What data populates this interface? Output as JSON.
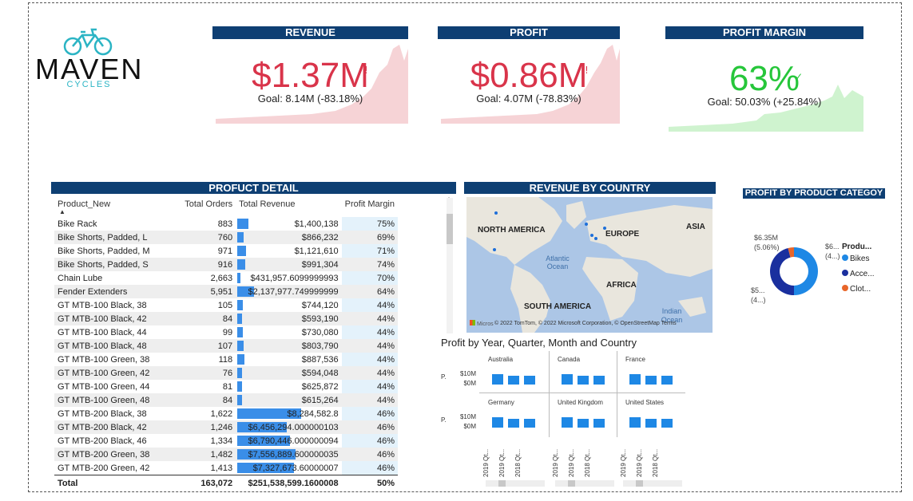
{
  "logo": {
    "brand": "MAVEN",
    "sub": "CYCLES"
  },
  "kpis": [
    {
      "title": "REVENUE",
      "value": "$1.37M",
      "goal": "Goal: 8.14M (-83.18%)",
      "status_icon": "!"
    },
    {
      "title": "PROFIT",
      "value": "$0.86M",
      "goal": "Goal: 4.07M (-78.83%)",
      "status_icon": "!"
    },
    {
      "title": "PROFIT MARGIN",
      "value": "63%",
      "goal": "Goal: 50.03% (+25.84%)",
      "status_icon": "✓"
    }
  ],
  "colors": {
    "header": "#0e3f73",
    "bad": "#d9344a",
    "good": "#26c63a",
    "bar": "#1e88e5"
  },
  "product_detail": {
    "title": "PROFUCT DETAIL",
    "columns": [
      "Product_New",
      "Total Orders",
      "Total Revenue",
      "Profit Margin"
    ],
    "rows": [
      {
        "name": "Bike Rack",
        "orders": "883",
        "revenue": "$1,400,138",
        "margin": "75%",
        "rev_num": 1400138
      },
      {
        "name": "Bike Shorts, Padded, L",
        "orders": "760",
        "revenue": "$866,232",
        "margin": "69%",
        "rev_num": 866232
      },
      {
        "name": "Bike Shorts, Padded, M",
        "orders": "971",
        "revenue": "$1,121,610",
        "margin": "71%",
        "rev_num": 1121610
      },
      {
        "name": "Bike Shorts, Padded, S",
        "orders": "916",
        "revenue": "$991,304",
        "margin": "74%",
        "rev_num": 991304
      },
      {
        "name": "Chain Lube",
        "orders": "2,663",
        "revenue": "$431,957.6099999993",
        "margin": "70%",
        "rev_num": 431957
      },
      {
        "name": "Fender Extenders",
        "orders": "5,951",
        "revenue": "$2,137,977.749999999",
        "margin": "64%",
        "rev_num": 2137977
      },
      {
        "name": "GT MTB-100 Black, 38",
        "orders": "105",
        "revenue": "$744,120",
        "margin": "44%",
        "rev_num": 744120
      },
      {
        "name": "GT MTB-100 Black, 42",
        "orders": "84",
        "revenue": "$593,190",
        "margin": "44%",
        "rev_num": 593190
      },
      {
        "name": "GT MTB-100 Black, 44",
        "orders": "99",
        "revenue": "$730,080",
        "margin": "44%",
        "rev_num": 730080
      },
      {
        "name": "GT MTB-100 Black, 48",
        "orders": "107",
        "revenue": "$803,790",
        "margin": "44%",
        "rev_num": 803790
      },
      {
        "name": "GT MTB-100 Green, 38",
        "orders": "118",
        "revenue": "$887,536",
        "margin": "44%",
        "rev_num": 887536
      },
      {
        "name": "GT MTB-100 Green, 42",
        "orders": "76",
        "revenue": "$594,048",
        "margin": "44%",
        "rev_num": 594048
      },
      {
        "name": "GT MTB-100 Green, 44",
        "orders": "81",
        "revenue": "$625,872",
        "margin": "44%",
        "rev_num": 625872
      },
      {
        "name": "GT MTB-100 Green, 48",
        "orders": "84",
        "revenue": "$615,264",
        "margin": "44%",
        "rev_num": 615264
      },
      {
        "name": "GT MTB-200 Black, 38",
        "orders": "1,622",
        "revenue": "$8,284,582.8",
        "margin": "46%",
        "rev_num": 8284582
      },
      {
        "name": "GT MTB-200 Black, 42",
        "orders": "1,246",
        "revenue": "$6,456,294.000000103",
        "margin": "46%",
        "rev_num": 6456294
      },
      {
        "name": "GT MTB-200 Black, 46",
        "orders": "1,334",
        "revenue": "$6,790,446.000000094",
        "margin": "46%",
        "rev_num": 6790446
      },
      {
        "name": "GT MTB-200 Green, 38",
        "orders": "1,482",
        "revenue": "$7,556,889.600000035",
        "margin": "46%",
        "rev_num": 7556889
      },
      {
        "name": "GT MTB-200 Green, 42",
        "orders": "1,413",
        "revenue": "$7,327,673.60000007",
        "margin": "46%",
        "rev_num": 7327673
      }
    ],
    "total": {
      "label": "Total",
      "orders": "163,072",
      "revenue": "$251,538,599.1600008",
      "margin": "50%"
    }
  },
  "map": {
    "title": "REVENUE BY COUNTRY",
    "labels": [
      "NORTH AMERICA",
      "EUROPE",
      "ASIA",
      "AFRICA",
      "SOUTH AMERICA"
    ],
    "oceans": [
      "Atlantic\nOcean",
      "Indian\nOcean"
    ],
    "attribution": "© 2022 TomTom, © 2022 Microsoft Corporation, © OpenStreetMap Terms",
    "ms_logo": "Micros"
  },
  "donut": {
    "title": "PROFIT BY PRODUCT CATEGOY",
    "legend_title": "Produ...",
    "legend": [
      {
        "name": "Bikes",
        "color": "#1e88e5"
      },
      {
        "name": "Acce...",
        "color": "#1a2f9e"
      },
      {
        "name": "Clot...",
        "color": "#e8662a"
      }
    ],
    "labels": [
      "$6.35M",
      "(5.06%)",
      "$6...",
      "(4...)",
      "$5...",
      "(4...)"
    ]
  },
  "small_multiples": {
    "title": "Profit by Year, Quarter, Month and Country",
    "axis_abbr": "P.",
    "y_ticks": [
      "$10M",
      "$0M"
    ],
    "x_labels": [
      "2019 Qt...",
      "2019 Qt...",
      "2018 Qt..."
    ],
    "countries": [
      {
        "name": "Australia",
        "values": [
          1,
          0.85,
          0.85
        ]
      },
      {
        "name": "Canada",
        "values": [
          1,
          0.85,
          0.85
        ]
      },
      {
        "name": "France",
        "values": [
          1,
          0.85,
          0.85
        ]
      },
      {
        "name": "Germany",
        "values": [
          1,
          0.85,
          0.85
        ]
      },
      {
        "name": "United Kingdom",
        "values": [
          1,
          0.85,
          0.85
        ]
      },
      {
        "name": "United States",
        "values": [
          1,
          0.85,
          0.85
        ]
      }
    ]
  }
}
